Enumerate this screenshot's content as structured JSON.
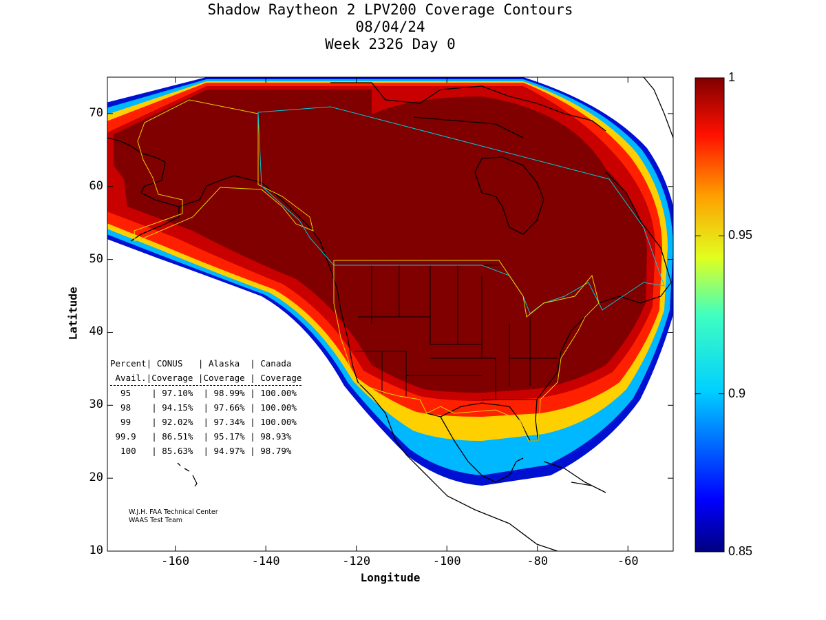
{
  "title": {
    "line1": "Shadow Raytheon 2 LPV200 Coverage Contours",
    "line2": "08/04/24",
    "line3": "Week 2326 Day 0"
  },
  "axes": {
    "xlabel": "Longitude",
    "ylabel": "Latitude",
    "xlim": [
      -175,
      -50
    ],
    "ylim": [
      10,
      75
    ],
    "xticks": [
      -160,
      -140,
      -120,
      -100,
      -80,
      -60
    ],
    "xtick_labels": [
      "-160",
      "-140",
      "-120",
      "-100",
      "-80",
      "-60"
    ],
    "yticks": [
      10,
      20,
      30,
      40,
      50,
      60,
      70
    ],
    "ytick_labels": [
      "10",
      "20",
      "30",
      "40",
      "50",
      "60",
      "70"
    ]
  },
  "colorbar": {
    "range": [
      0.85,
      1
    ],
    "ticks": [
      1,
      0.95,
      0.9,
      0.85
    ],
    "tick_labels": [
      "1",
      "0.95",
      "0.9",
      "0.85"
    ],
    "colormap": "jet"
  },
  "stats_table": {
    "header1": [
      "Percent",
      "CONUS",
      "Alaska",
      "Canada"
    ],
    "header2": [
      "Avail.",
      "Coverage",
      "Coverage",
      "Coverage"
    ],
    "rows": [
      [
        "95",
        "97.10%",
        "98.99%",
        "100.00%"
      ],
      [
        "98",
        "94.15%",
        "97.66%",
        "100.00%"
      ],
      [
        "99",
        "92.02%",
        "97.34%",
        "100.00%"
      ],
      [
        "99.9",
        "86.51%",
        "95.17%",
        "98.93%"
      ],
      [
        "100",
        "85.63%",
        "94.97%",
        "98.79%"
      ]
    ]
  },
  "credit": {
    "line1": "W.J.H. FAA Technical Center",
    "line2": "WAAS Test Team"
  },
  "colors": {
    "inner": "#800000",
    "boundary_conus": "#e6d400",
    "boundary_canada": "#00c8d8"
  }
}
